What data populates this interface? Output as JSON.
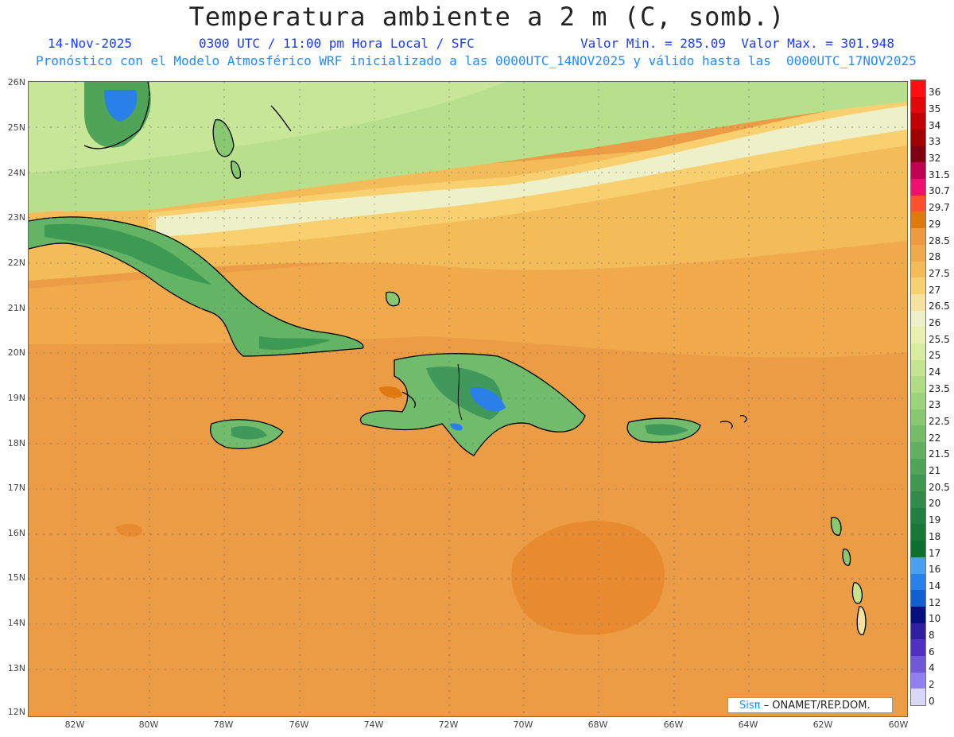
{
  "header": {
    "title": "Temperatura ambiente a 2 m (C, somb.)",
    "date": "14-Nov-2025",
    "time": "0300 UTC / 11:00 pm Hora Local / SFC",
    "minmax": "Valor Min. = 285.09  Valor Max. = 301.948",
    "model_info": "Pronóstico con el Modelo Atmosférico WRF inicializado a las 0000UTC_14NOV2025 y válido hasta las  0000UTC_17NOV2025"
  },
  "axes": {
    "lat_labels": [
      "26N",
      "25N",
      "24N",
      "23N",
      "22N",
      "21N",
      "20N",
      "19N",
      "18N",
      "17N",
      "16N",
      "15N",
      "14N",
      "13N",
      "12N"
    ],
    "lon_labels": [
      "82W",
      "80W",
      "78W",
      "76W",
      "74W",
      "72W",
      "70W",
      "68W",
      "66W",
      "64W",
      "62W",
      "60W"
    ]
  },
  "colorbar": {
    "levels": [
      "36",
      "35",
      "34",
      "33",
      "32",
      "31.5",
      "30.7",
      "29.7",
      "29",
      "28.5",
      "28",
      "27.5",
      "27",
      "26.5",
      "26",
      "25.5",
      "25",
      "24",
      "23.5",
      "23",
      "22.5",
      "22",
      "21.5",
      "21",
      "20.5",
      "20",
      "19",
      "18",
      "17",
      "16",
      "14",
      "12",
      "10",
      "8",
      "6",
      "4",
      "2",
      "0"
    ],
    "colors": [
      "#ff1010",
      "#e00808",
      "#c00000",
      "#a00000",
      "#800010",
      "#c00050",
      "#f01070",
      "#ff5030",
      "#e07810",
      "#ee9a40",
      "#f0aa4c",
      "#f4bc58",
      "#f8d070",
      "#f4e2a0",
      "#eef0c8",
      "#e8f0b0",
      "#d8eca0",
      "#c4e490",
      "#b0dc84",
      "#9cd47c",
      "#88c870",
      "#74bc68",
      "#60b060",
      "#50a458",
      "#409850",
      "#308c48",
      "#208040",
      "#187838",
      "#0c7030",
      "#4aa0f0",
      "#2880e8",
      "#1060d0",
      "#081080",
      "#3020a0",
      "#5030c0",
      "#7058d8",
      "#9080f0",
      "#d8d8f8"
    ]
  },
  "credit": {
    "logo": "Sisπ",
    "text": " – ONAMET/REP.DOM."
  }
}
